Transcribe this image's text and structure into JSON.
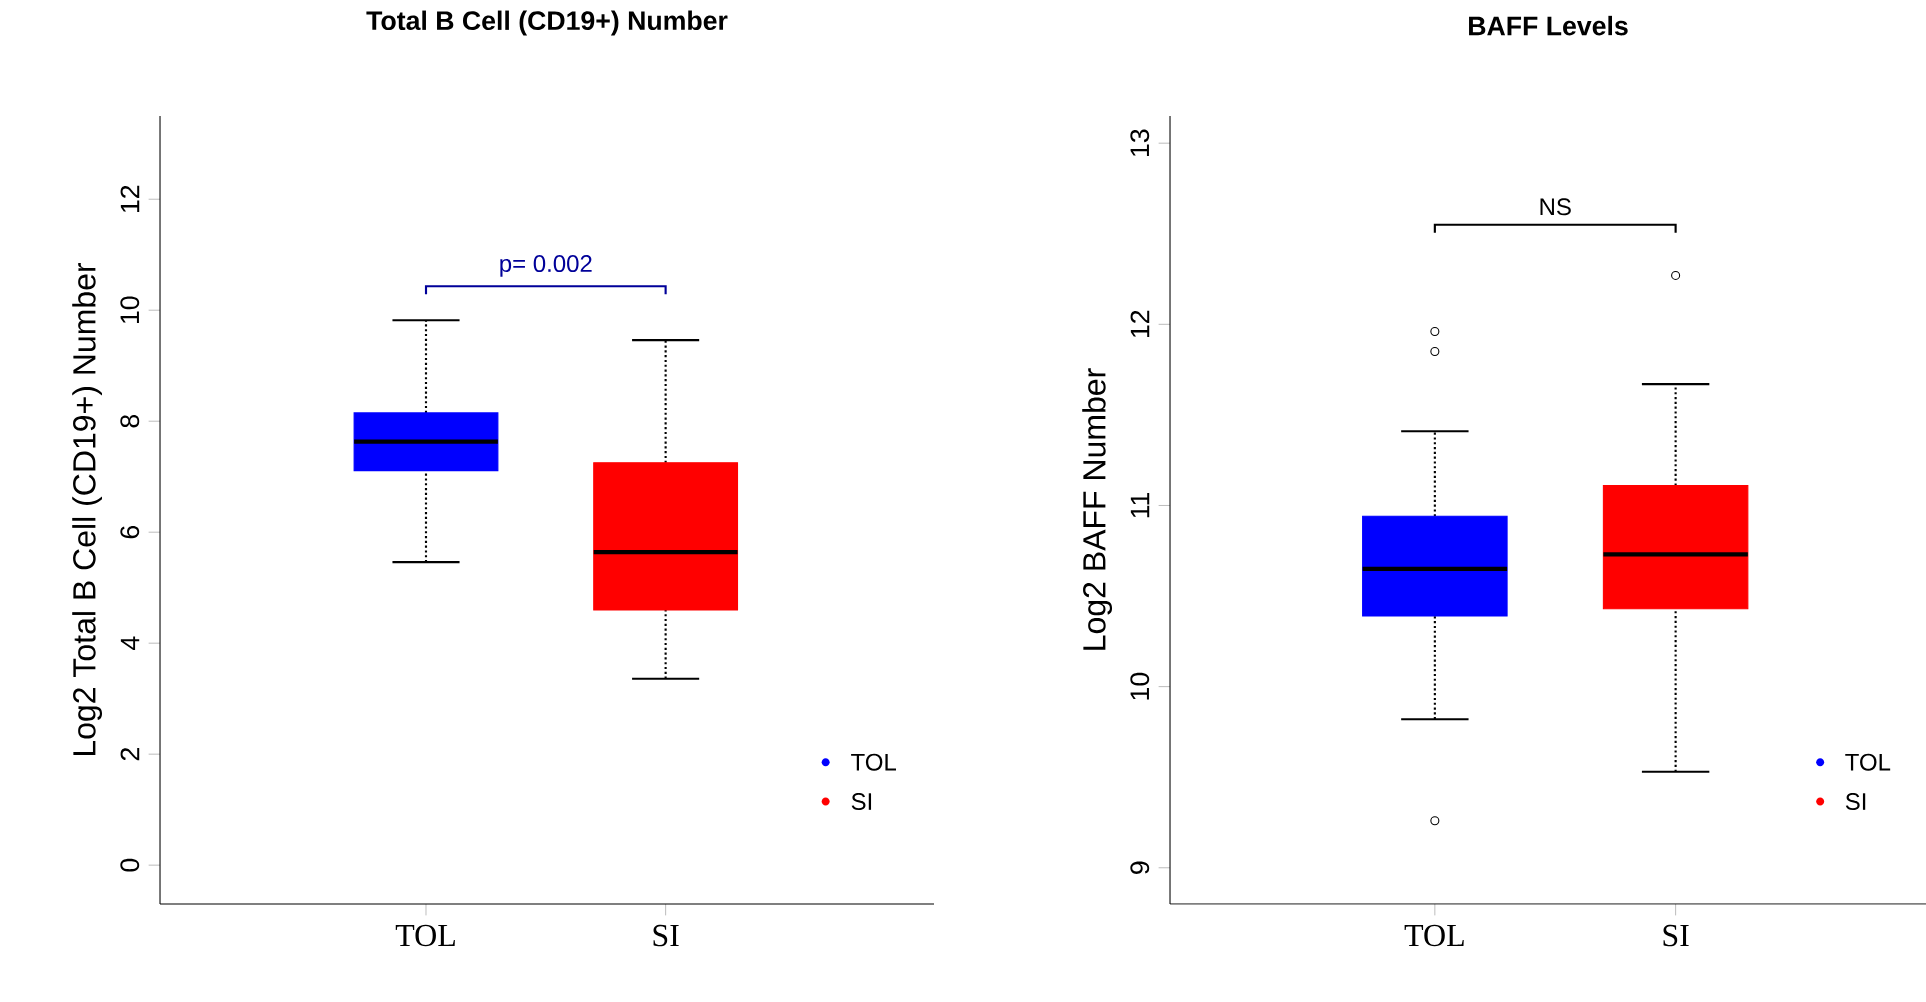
{
  "chart_data": [
    {
      "type": "box",
      "title": "Total B Cell (CD19+) Number",
      "ylabel": "Log2 Total B Cell (CD19+) Number",
      "categories": [
        "TOL",
        "SI"
      ],
      "series": [
        {
          "name": "TOL",
          "color": "#0000ff",
          "boxes": [
            {
              "low": 5.46,
              "q1": 7.11,
              "median": 7.63,
              "q3": 8.15,
              "high": 9.82
            },
            null
          ]
        },
        {
          "name": "SI",
          "color": "#ff0000",
          "boxes": [
            null,
            {
              "low": 3.36,
              "q1": 4.6,
              "median": 5.64,
              "q3": 7.25,
              "high": 9.46
            }
          ]
        }
      ],
      "ylim": [
        -0.7,
        13.5
      ],
      "yticks": [
        0,
        2,
        4,
        6,
        8,
        10,
        12
      ],
      "annotations": [
        "p= 0.002"
      ],
      "legend": "bottom right"
    },
    {
      "type": "box",
      "title": "BAFF Levels",
      "ylabel": "Log2 BAFF Number",
      "categories": [
        "TOL",
        "SI"
      ],
      "series": [
        {
          "name": "TOL",
          "color": "#0000ff",
          "boxes": [
            {
              "low": 9.82,
              "q1": 10.39,
              "median": 10.65,
              "q3": 10.94,
              "high": 11.41,
              "outliers": [
                11.96,
                11.85,
                9.26
              ]
            },
            null
          ]
        },
        {
          "name": "SI",
          "color": "#ff0000",
          "boxes": [
            null,
            {
              "low": 9.53,
              "q1": 10.43,
              "median": 10.73,
              "q3": 11.11,
              "high": 11.67,
              "outliers": [
                12.27
              ]
            }
          ]
        }
      ],
      "ylim": [
        8.8,
        13.15
      ],
      "yticks": [
        9,
        10,
        11,
        12,
        13
      ],
      "annotations": [
        "NS"
      ],
      "legend": "bottom right"
    }
  ]
}
